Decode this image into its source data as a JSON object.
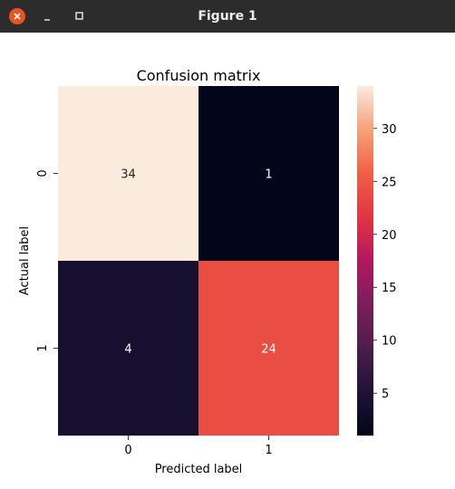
{
  "window": {
    "title": "Figure 1",
    "icons": {
      "close": "close-icon",
      "minimize": "minimize-icon",
      "maximize": "maximize-icon"
    },
    "accent_color": "#e95420"
  },
  "chart_data": {
    "type": "heatmap",
    "title": "Confusion matrix",
    "xlabel": "Predicted label",
    "ylabel": "Actual label",
    "x_categories": [
      "0",
      "1"
    ],
    "y_categories": [
      "0",
      "1"
    ],
    "matrix": [
      [
        34,
        1
      ],
      [
        4,
        24
      ]
    ],
    "colormap": "rocket",
    "colorbar": {
      "range": [
        1,
        34
      ],
      "ticks": [
        5,
        10,
        15,
        20,
        25,
        30
      ]
    }
  }
}
